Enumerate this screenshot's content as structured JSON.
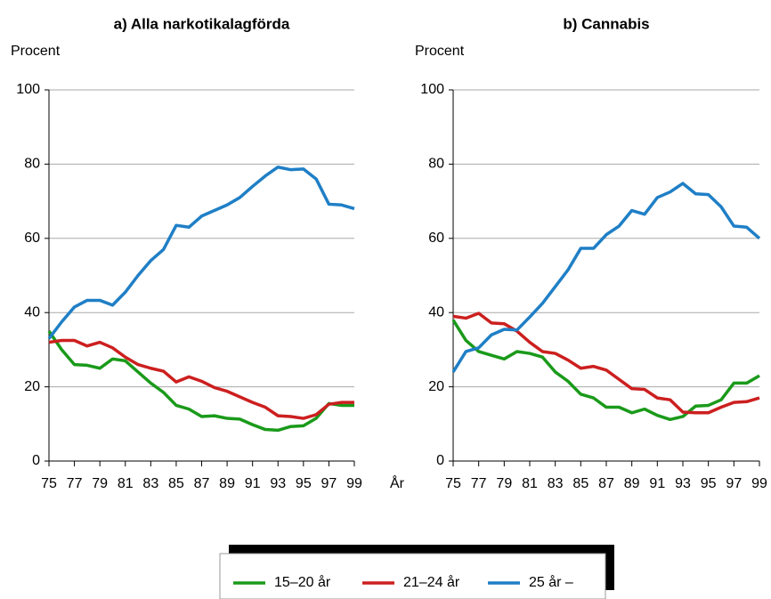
{
  "chart_data": [
    {
      "type": "line",
      "title": "a) Alla narkotikalagförda",
      "ylabel": "Procent",
      "xlabel": "År",
      "x": [
        75,
        76,
        77,
        78,
        79,
        80,
        81,
        82,
        83,
        84,
        85,
        86,
        87,
        88,
        89,
        90,
        91,
        92,
        93,
        94,
        95,
        96,
        97,
        98,
        99
      ],
      "xlim": [
        75,
        99
      ],
      "xticks": [
        75,
        77,
        79,
        81,
        83,
        85,
        87,
        89,
        91,
        93,
        95,
        97,
        99
      ],
      "ylim": [
        0,
        100
      ],
      "yticks": [
        0,
        20,
        40,
        60,
        80,
        100
      ],
      "grid": true,
      "series": [
        {
          "name": "15–20 år",
          "color": "#1a9a1a",
          "values": [
            35,
            30,
            26,
            25.8,
            25,
            27.5,
            27,
            24,
            21,
            18.5,
            15,
            14,
            12,
            12.2,
            11.5,
            11.3,
            9.8,
            8.5,
            8.3,
            9.3,
            9.5,
            11.5,
            15.5,
            15,
            15
          ]
        },
        {
          "name": "21–24 år",
          "color": "#cc1f1f",
          "values": [
            32,
            32.5,
            32.5,
            31,
            32,
            30.5,
            28,
            26,
            25,
            24.2,
            21.3,
            22.7,
            21.5,
            19.8,
            18.8,
            17.3,
            15.8,
            14.5,
            12.2,
            12,
            11.5,
            12.5,
            15.3,
            15.8,
            15.8
          ]
        },
        {
          "name": "25 år –",
          "color": "#1f7fc6",
          "values": [
            33,
            37.5,
            41.5,
            43.3,
            43.3,
            42,
            45.5,
            50,
            54,
            57,
            63.5,
            63,
            66,
            67.5,
            69,
            71,
            74,
            76.8,
            79.2,
            78.5,
            78.7,
            76,
            69.2,
            69,
            68
          ]
        }
      ]
    },
    {
      "type": "line",
      "title": "b) Cannabis",
      "ylabel": "Procent",
      "x": [
        75,
        76,
        77,
        78,
        79,
        80,
        81,
        82,
        83,
        84,
        85,
        86,
        87,
        88,
        89,
        90,
        91,
        92,
        93,
        94,
        95,
        96,
        97,
        98,
        99
      ],
      "xlim": [
        75,
        99
      ],
      "xticks": [
        75,
        77,
        79,
        81,
        83,
        85,
        87,
        89,
        91,
        93,
        95,
        97,
        99
      ],
      "ylim": [
        0,
        100
      ],
      "yticks": [
        0,
        20,
        40,
        60,
        80,
        100
      ],
      "grid": true,
      "series": [
        {
          "name": "15–20 år",
          "color": "#1a9a1a",
          "values": [
            38,
            32.5,
            29.5,
            28.5,
            27.5,
            29.5,
            29,
            28,
            24,
            21.5,
            18,
            17,
            14.5,
            14.5,
            13,
            14,
            12.3,
            11.2,
            12,
            14.8,
            15,
            16.5,
            21,
            21,
            23
          ]
        },
        {
          "name": "21–24 år",
          "color": "#cc1f1f",
          "values": [
            39,
            38.5,
            39.8,
            37.2,
            37,
            35,
            32,
            29.5,
            29,
            27.2,
            25,
            25.5,
            24.5,
            22,
            19.5,
            19.3,
            17,
            16.5,
            13.2,
            13,
            13,
            14.5,
            15.8,
            16,
            17
          ]
        },
        {
          "name": "25 år –",
          "color": "#1f7fc6",
          "values": [
            24,
            29.5,
            30.5,
            34,
            35.5,
            35.3,
            38.8,
            42.5,
            47,
            51.5,
            57.3,
            57.3,
            61,
            63.3,
            67.5,
            66.5,
            71,
            72.5,
            74.8,
            72,
            71.8,
            68.5,
            63.3,
            63,
            60
          ]
        }
      ]
    }
  ]
}
